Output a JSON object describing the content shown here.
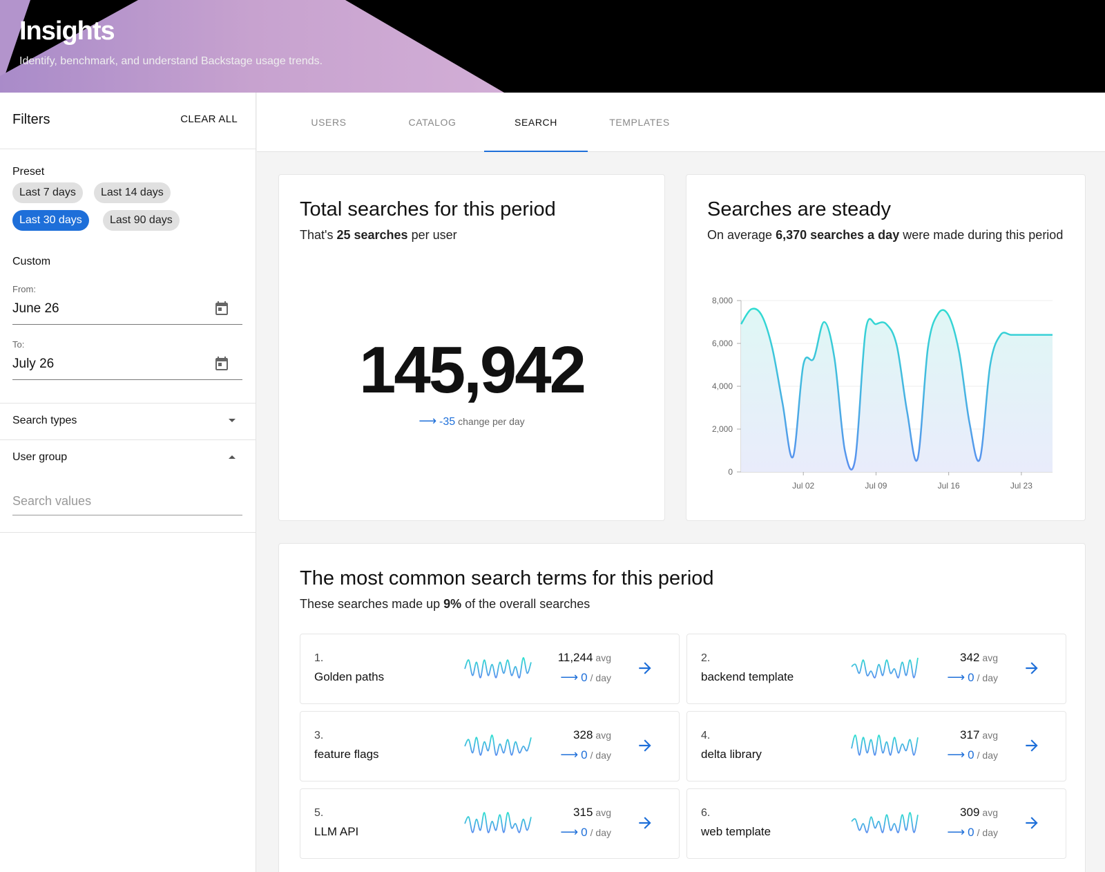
{
  "header": {
    "title": "Insights",
    "subtitle": "Identify, benchmark, and understand Backstage usage trends."
  },
  "sidebar": {
    "title": "Filters",
    "clear_all": "CLEAR ALL",
    "preset_label": "Preset",
    "presets": [
      "Last 7 days",
      "Last 14 days",
      "Last 30 days",
      "Last 90 days"
    ],
    "active_preset": "Last 30 days",
    "custom_label": "Custom",
    "from_label": "From:",
    "from_value": "June 26",
    "to_label": "To:",
    "to_value": "July 26",
    "search_types": "Search types",
    "user_group": "User group",
    "search_placeholder": "Search values"
  },
  "tabs": [
    {
      "label": "USERS",
      "active": false
    },
    {
      "label": "CATALOG",
      "active": false
    },
    {
      "label": "SEARCH",
      "active": true
    },
    {
      "label": "TEMPLATES",
      "active": false
    }
  ],
  "total_card": {
    "title": "Total searches for this period",
    "sub_pre": "That's ",
    "sub_bold": "25 searches",
    "sub_post": " per user",
    "value": "145,942",
    "change_value": "-35",
    "change_label": "change per day"
  },
  "steady_card": {
    "title": "Searches are steady",
    "sub_pre": "On average ",
    "sub_bold": "6,370 searches a day",
    "sub_post": " were made during this period"
  },
  "chart_data": {
    "type": "area",
    "x": [
      "Jun 26",
      "Jun 27",
      "Jun 28",
      "Jun 29",
      "Jun 30",
      "Jul 01",
      "Jul 02",
      "Jul 03",
      "Jul 04",
      "Jul 05",
      "Jul 06",
      "Jul 07",
      "Jul 08",
      "Jul 09",
      "Jul 10",
      "Jul 11",
      "Jul 12",
      "Jul 13",
      "Jul 14",
      "Jul 15",
      "Jul 16",
      "Jul 17",
      "Jul 18",
      "Jul 19",
      "Jul 20",
      "Jul 21",
      "Jul 22",
      "Jul 23",
      "Jul 24",
      "Jul 25",
      "Jul 26"
    ],
    "values": [
      6900,
      7600,
      7300,
      5800,
      3200,
      700,
      5000,
      5300,
      7000,
      5300,
      1000,
      600,
      6600,
      6900,
      6900,
      5900,
      2800,
      600,
      5800,
      7400,
      7300,
      5600,
      2300,
      600,
      5000,
      6400,
      6400,
      6400,
      6400,
      6400,
      6400
    ],
    "xticks": [
      "Jul 02",
      "Jul 09",
      "Jul 16",
      "Jul 23"
    ],
    "yticks": [
      "0",
      "2,000",
      "4,000",
      "6,000",
      "8,000"
    ],
    "ylim": [
      0,
      8000
    ],
    "grid": true,
    "colors": {
      "line_top": "#2ee0d0",
      "line_bottom": "#5b8ef0"
    }
  },
  "terms_card": {
    "title": "The most common search terms for this period",
    "sub_pre": "These searches made up ",
    "sub_bold": "9%",
    "sub_post": " of the overall searches",
    "avg_unit": "avg",
    "per_day_unit": "/ day",
    "items": [
      {
        "rank": "1.",
        "name": "Golden paths",
        "avg": "11,244",
        "per_day": "0"
      },
      {
        "rank": "2.",
        "name": "backend template",
        "avg": "342",
        "per_day": "0"
      },
      {
        "rank": "3.",
        "name": "feature flags",
        "avg": "328",
        "per_day": "0"
      },
      {
        "rank": "4.",
        "name": "delta library",
        "avg": "317",
        "per_day": "0"
      },
      {
        "rank": "5.",
        "name": "LLM API",
        "avg": "315",
        "per_day": "0"
      },
      {
        "rank": "6.",
        "name": "web template",
        "avg": "309",
        "per_day": "0"
      }
    ]
  },
  "colors": {
    "accent": "#1e6fd9",
    "header_bg": "#000000",
    "header_purple": "#c9a6d2"
  }
}
